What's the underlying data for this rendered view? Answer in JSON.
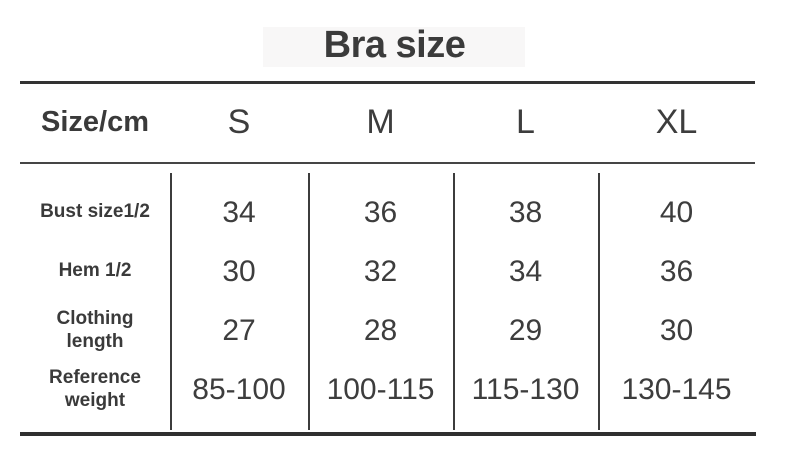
{
  "title": "Bra size",
  "table": {
    "corner_label": "Size/cm",
    "columns": [
      "S",
      "M",
      "L",
      "XL"
    ],
    "rows": [
      {
        "label": "Bust size1/2",
        "values": [
          "34",
          "36",
          "38",
          "40"
        ]
      },
      {
        "label": "Hem 1/2",
        "values": [
          "30",
          "32",
          "34",
          "36"
        ]
      },
      {
        "label": "Clothing\nlength",
        "values": [
          "27",
          "28",
          "29",
          "30"
        ]
      },
      {
        "label": "Reference\nweight",
        "values": [
          "85-100",
          "100-115",
          "115-130",
          "130-145"
        ]
      }
    ]
  },
  "chart_data": {
    "type": "table",
    "title": "Bra size",
    "unit_header": "Size/cm",
    "columns": [
      "S",
      "M",
      "L",
      "XL"
    ],
    "rows": [
      {
        "label": "Bust size1/2",
        "values": [
          34,
          36,
          38,
          40
        ]
      },
      {
        "label": "Hem 1/2",
        "values": [
          30,
          32,
          34,
          36
        ]
      },
      {
        "label": "Clothing length",
        "values": [
          27,
          28,
          29,
          30
        ]
      },
      {
        "label": "Reference weight",
        "values": [
          "85-100",
          "100-115",
          "115-130",
          "130-145"
        ]
      }
    ],
    "layout": {
      "grid": "vertical dividers between value columns, horizontal rules above/below header row and at table bottom"
    }
  },
  "colors": {
    "background": "#ffffff",
    "text": "#3a3a3a",
    "rule": "#333333"
  }
}
